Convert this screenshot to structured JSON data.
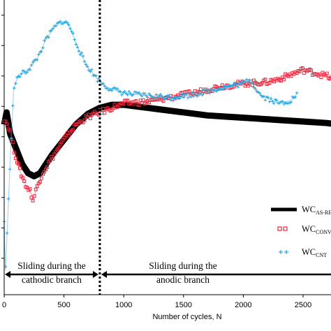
{
  "chart_data": {
    "type": "line",
    "title": "",
    "xlabel": "Number of cycles, N",
    "ylabel": "",
    "xlim": [
      0,
      2800
    ],
    "x_ticks": [
      0,
      500,
      1000,
      1500,
      2000,
      2500
    ],
    "tick_labels": [
      "0",
      "500",
      "1000",
      "1500",
      "2000",
      "2500"
    ],
    "y_tick_positions": [
      -5,
      -4,
      -3,
      -2,
      -1,
      0,
      1,
      2,
      3
    ],
    "ylim": [
      -6.2,
      3.5
    ],
    "divider_x": 800,
    "regions": [
      {
        "label_line1": "Sliding during the",
        "label_line2": "cathodic branch",
        "x_start": 0,
        "x_end": 800
      },
      {
        "label_line1": "Sliding during the",
        "label_line2": "anodic branch",
        "x_start": 800,
        "x_end": 2800
      }
    ],
    "legend": [
      {
        "base": "WC",
        "sub": "AS-RE",
        "marker": "thick-line",
        "color": "#000000"
      },
      {
        "base": "WC",
        "sub": "CONV",
        "marker": "open-square",
        "color": "#e8263c"
      },
      {
        "base": "WC",
        "sub": "CNT",
        "marker": "plus",
        "color": "#2aa6df"
      }
    ],
    "series": [
      {
        "name": "WC AS-RE",
        "color": "#000000",
        "x": [
          0,
          20,
          50,
          100,
          150,
          200,
          250,
          300,
          350,
          400,
          500,
          600,
          700,
          800,
          900,
          1000,
          1100,
          1200,
          1300,
          1500,
          1700,
          1900,
          2100,
          2300,
          2500,
          2700,
          2800
        ],
        "y": [
          -0.6,
          -0.2,
          -0.9,
          -1.4,
          -1.9,
          -2.2,
          -2.3,
          -2.2,
          -1.9,
          -1.6,
          -1.1,
          -0.6,
          -0.25,
          -0.05,
          0.05,
          0.05,
          0.0,
          -0.05,
          -0.1,
          -0.2,
          -0.3,
          -0.35,
          -0.4,
          -0.45,
          -0.5,
          -0.55,
          -0.6
        ]
      },
      {
        "name": "WC CONV",
        "color": "#e8263c",
        "x": [
          0,
          40,
          80,
          130,
          180,
          220,
          240,
          270,
          320,
          400,
          500,
          600,
          700,
          800,
          900,
          1000,
          1200,
          1400,
          1600,
          1800,
          2000,
          2200,
          2300,
          2400,
          2500,
          2600,
          2700,
          2800
        ],
        "y": [
          -0.4,
          -0.7,
          -1.4,
          -2.1,
          -2.6,
          -2.8,
          -3.1,
          -2.7,
          -2.2,
          -1.7,
          -1.1,
          -0.6,
          -0.35,
          -0.2,
          -0.05,
          0.1,
          0.15,
          0.3,
          0.45,
          0.65,
          0.75,
          0.8,
          0.9,
          1.05,
          1.2,
          1.1,
          1.0,
          0.75
        ]
      },
      {
        "name": "WC CNT",
        "color": "#2aa6df",
        "x": [
          0,
          10,
          20,
          50,
          80,
          120,
          200,
          280,
          350,
          420,
          480,
          540,
          600,
          680,
          780,
          850,
          950,
          1050,
          1200,
          1400,
          1600,
          1800,
          2000,
          2050,
          2150,
          2300,
          2400,
          2450
        ],
        "y": [
          -3.8,
          -5.4,
          -4.6,
          -1.8,
          0.6,
          1.0,
          1.2,
          1.6,
          2.2,
          2.6,
          2.8,
          2.7,
          2.1,
          1.4,
          0.9,
          0.65,
          0.5,
          0.4,
          0.35,
          0.3,
          0.4,
          0.6,
          0.75,
          0.9,
          0.35,
          0.1,
          0.2,
          0.4
        ]
      }
    ]
  }
}
